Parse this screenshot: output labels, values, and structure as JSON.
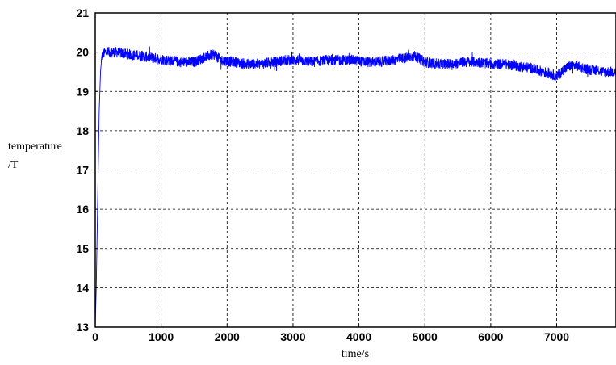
{
  "chart_data": {
    "type": "line",
    "title": "",
    "xlabel": "time/s",
    "ylabel_line1": "temperature",
    "ylabel_line2": "/T",
    "xlim": [
      0,
      7900
    ],
    "ylim": [
      13,
      21
    ],
    "xticks": [
      0,
      1000,
      2000,
      3000,
      4000,
      5000,
      6000,
      7000
    ],
    "yticks": [
      13,
      14,
      15,
      16,
      17,
      18,
      19,
      20,
      21
    ],
    "grid": true,
    "grid_style": "dashed",
    "line_color": "#0000ff",
    "series": [
      {
        "x": [
          0,
          15,
          30,
          45,
          60,
          80,
          100,
          150,
          300,
          500,
          700,
          900,
          1100,
          1300,
          1500,
          1700,
          1800,
          1900,
          2100,
          2300,
          2500,
          2700,
          2900,
          3100,
          3300,
          3500,
          3700,
          3900,
          4100,
          4300,
          4500,
          4700,
          4850,
          4900,
          5000,
          5200,
          5400,
          5600,
          5800,
          6000,
          6200,
          6400,
          6600,
          6800,
          6900,
          7000,
          7050,
          7100,
          7200,
          7300,
          7400,
          7500,
          7600,
          7700,
          7800,
          7900
        ],
        "y": [
          13.0,
          14.0,
          15.5,
          17.0,
          18.5,
          19.5,
          19.9,
          20.0,
          20.0,
          19.95,
          19.9,
          19.85,
          19.8,
          19.75,
          19.75,
          19.9,
          19.95,
          19.8,
          19.75,
          19.7,
          19.7,
          19.75,
          19.8,
          19.8,
          19.75,
          19.8,
          19.8,
          19.8,
          19.75,
          19.75,
          19.8,
          19.85,
          19.9,
          19.85,
          19.75,
          19.7,
          19.7,
          19.75,
          19.75,
          19.7,
          19.7,
          19.65,
          19.6,
          19.5,
          19.45,
          19.4,
          19.45,
          19.55,
          19.65,
          19.65,
          19.6,
          19.55,
          19.55,
          19.5,
          19.5,
          19.5
        ]
      }
    ]
  }
}
